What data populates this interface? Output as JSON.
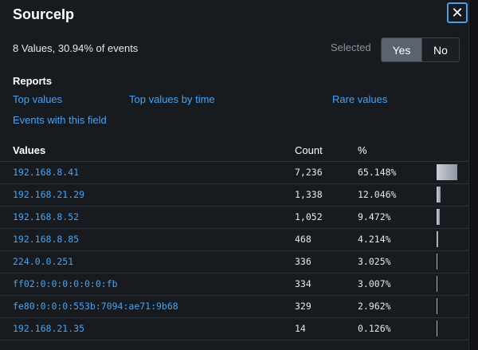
{
  "title": "SourceIp",
  "summary": "8 Values, 30.94% of events",
  "selected": {
    "label": "Selected",
    "yes": "Yes",
    "no": "No"
  },
  "reports": {
    "title": "Reports",
    "top_values": "Top values",
    "top_values_by_time": "Top values by time",
    "rare_values": "Rare values",
    "events_with_field": "Events with this field"
  },
  "table": {
    "headers": {
      "values": "Values",
      "count": "Count",
      "pct": "%"
    },
    "rows": [
      {
        "value": "192.168.8.41",
        "count": "7,236",
        "pct": "65.148%",
        "fraction": 0.65148
      },
      {
        "value": "192.168.21.29",
        "count": "1,338",
        "pct": "12.046%",
        "fraction": 0.12046
      },
      {
        "value": "192.168.8.52",
        "count": "1,052",
        "pct": "9.472%",
        "fraction": 0.09472
      },
      {
        "value": "192.168.8.85",
        "count": "468",
        "pct": "4.214%",
        "fraction": 0.04214
      },
      {
        "value": "224.0.0.251",
        "count": "336",
        "pct": "3.025%",
        "fraction": 0.03025
      },
      {
        "value": "ff02:0:0:0:0:0:0:fb",
        "count": "334",
        "pct": "3.007%",
        "fraction": 0.03007
      },
      {
        "value": "fe80:0:0:0:553b:7094:ae71:9b68",
        "count": "329",
        "pct": "2.962%",
        "fraction": 0.02962
      },
      {
        "value": "192.168.21.35",
        "count": "14",
        "pct": "0.126%",
        "fraction": 0.00126
      }
    ]
  }
}
